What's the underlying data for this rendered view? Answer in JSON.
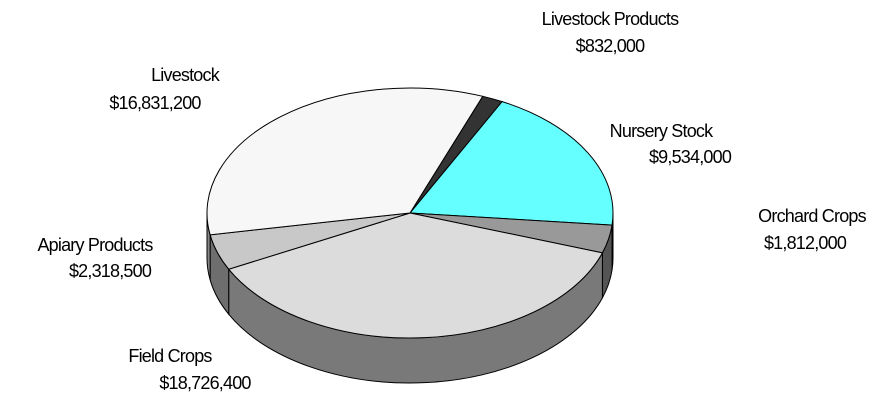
{
  "chart_data": {
    "type": "pie",
    "categories": [
      "Livestock Products",
      "Nursery Stock",
      "Orchard Crops",
      "Field Crops",
      "Apiary Products",
      "Livestock"
    ],
    "values": [
      832000,
      9534000,
      1812000,
      18726400,
      2318500,
      16831200
    ],
    "value_labels": [
      "$832,000",
      "$9,534,000",
      "$1,812,000",
      "$18,726,400",
      "$2,318,500",
      "$16,831,200"
    ],
    "colors": [
      "#333333",
      "#66ffff",
      "#999999",
      "#dcdcdc",
      "#c8c8c8",
      "#f7f7f7"
    ]
  }
}
